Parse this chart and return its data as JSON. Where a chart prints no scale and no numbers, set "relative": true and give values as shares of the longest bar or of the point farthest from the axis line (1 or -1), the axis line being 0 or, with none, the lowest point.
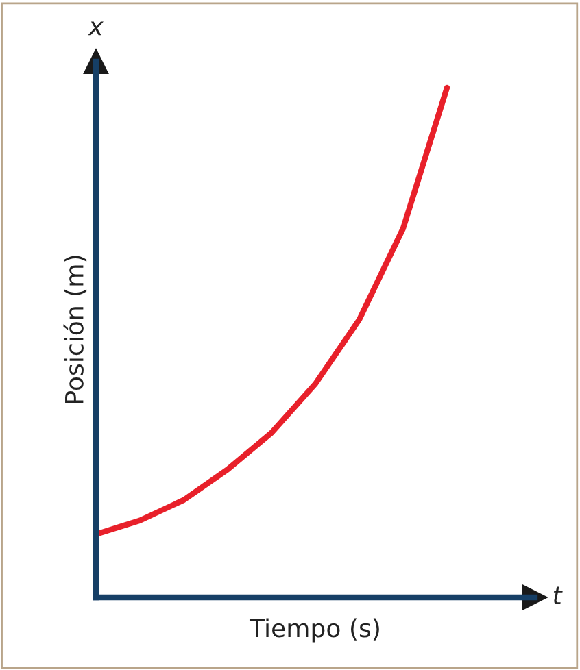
{
  "chart_data": {
    "type": "line",
    "relative": true,
    "xlabel": "Tiempo (s)",
    "ylabel": "Posición (m)",
    "annotations": [
      "x",
      "t"
    ],
    "categories": [
      null,
      null,
      null,
      null,
      null,
      null,
      null,
      null,
      null
    ],
    "series": [
      {
        "color": "#e8202a",
        "values": [
          0.124,
          0.151,
          0.191,
          0.251,
          0.323,
          0.419,
          0.545,
          0.724,
          1.0
        ]
      }
    ],
    "grid": false,
    "legend": false,
    "marker": "none",
    "line_style": "solid"
  }
}
